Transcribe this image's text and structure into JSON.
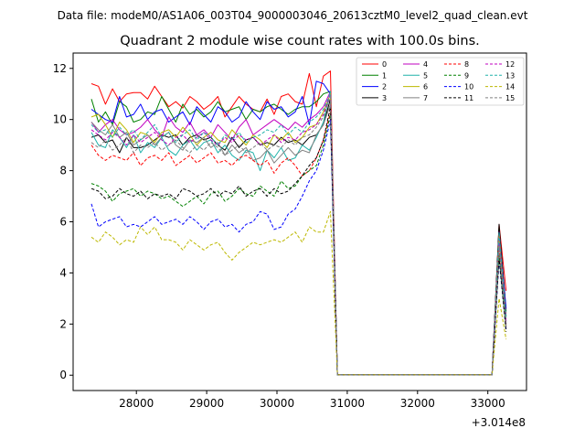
{
  "header": {
    "data_file": "Data file: modeM0/AS1A06_003T04_9000003046_20613cztM0_level2_quad_clean.evt"
  },
  "chart_data": {
    "type": "line",
    "title": "Quadrant 2 module wise count rates with 100.0s bins.",
    "xlabel": "",
    "ylabel": "",
    "x_offset_label": "+3.014e8",
    "xlim": [
      27100,
      33550
    ],
    "ylim": [
      -0.6,
      12.6
    ],
    "x_ticks": [
      28000,
      29000,
      30000,
      31000,
      32000,
      33000
    ],
    "x_tick_labels": [
      "28000",
      "29000",
      "30000",
      "31000",
      "32000",
      "33000"
    ],
    "y_ticks": [
      0,
      2,
      4,
      6,
      8,
      10,
      12
    ],
    "y_tick_labels": [
      "0",
      "2",
      "4",
      "6",
      "8",
      "10",
      "12"
    ],
    "legend_position": "top-right",
    "x": [
      27360,
      27460,
      27560,
      27660,
      27760,
      27860,
      27960,
      28060,
      28160,
      28260,
      28360,
      28460,
      28560,
      28660,
      28760,
      28860,
      28960,
      29060,
      29160,
      29260,
      29360,
      29460,
      29560,
      29660,
      29760,
      29860,
      29960,
      30060,
      30160,
      30260,
      30360,
      30460,
      30560,
      30660,
      30760,
      30860,
      30960,
      31060,
      31160,
      31260,
      31360,
      31460,
      31560,
      31660,
      31760,
      31860,
      31960,
      32060,
      32160,
      32260,
      32360,
      32460,
      32560,
      32660,
      32760,
      32860,
      32960,
      33060,
      33160,
      33260
    ],
    "series": [
      {
        "name": "0",
        "color": "#ff0000",
        "dash": "solid",
        "values": [
          11.4,
          11.3,
          10.6,
          11.2,
          10.7,
          11.0,
          11.05,
          11.05,
          10.8,
          11.3,
          10.9,
          10.5,
          10.7,
          10.45,
          10.9,
          10.7,
          10.4,
          10.6,
          10.9,
          10.1,
          10.5,
          10.9,
          10.6,
          10.4,
          10.3,
          10.8,
          10.2,
          10.9,
          11.0,
          10.7,
          10.6,
          11.8,
          10.5,
          11.7,
          11.9,
          0.02,
          0.02,
          0.02,
          0.02,
          0.02,
          0.02,
          0.02,
          0.02,
          0.02,
          0.02,
          0.02,
          0.02,
          0.02,
          0.02,
          0.02,
          0.02,
          0.02,
          0.02,
          0.02,
          0.02,
          0.02,
          0.02,
          0.02,
          5.9,
          3.3
        ]
      },
      {
        "name": "1",
        "color": "#008000",
        "dash": "solid",
        "values": [
          10.8,
          9.9,
          10.3,
          9.8,
          10.7,
          10.5,
          9.9,
          10.0,
          10.3,
          10.2,
          10.9,
          10.4,
          9.9,
          10.6,
          10.2,
          10.4,
          10.1,
          10.3,
          10.7,
          10.3,
          10.4,
          10.5,
          10.0,
          10.4,
          10.3,
          10.5,
          10.6,
          10.4,
          10.2,
          10.4,
          10.5,
          10.5,
          10.7,
          11.0,
          11.1,
          0.02,
          0.02,
          0.02,
          0.02,
          0.02,
          0.02,
          0.02,
          0.02,
          0.02,
          0.02,
          0.02,
          0.02,
          0.02,
          0.02,
          0.02,
          0.02,
          0.02,
          0.02,
          0.02,
          0.02,
          0.02,
          0.02,
          0.02,
          5.8,
          2.5
        ]
      },
      {
        "name": "2",
        "color": "#0000ff",
        "dash": "solid",
        "values": [
          10.4,
          10.2,
          10.0,
          9.9,
          10.9,
          10.1,
          10.2,
          10.6,
          10.0,
          10.3,
          10.4,
          9.9,
          10.1,
          10.3,
          9.8,
          10.5,
          10.2,
          9.9,
          10.5,
          10.3,
          9.9,
          10.1,
          10.7,
          10.3,
          10.0,
          10.7,
          10.4,
          10.5,
          10.1,
          10.3,
          10.9,
          9.8,
          11.5,
          11.4,
          11.0,
          0.02,
          0.02,
          0.02,
          0.02,
          0.02,
          0.02,
          0.02,
          0.02,
          0.02,
          0.02,
          0.02,
          0.02,
          0.02,
          0.02,
          0.02,
          0.02,
          0.02,
          0.02,
          0.02,
          0.02,
          0.02,
          0.02,
          0.02,
          5.7,
          2.6
        ]
      },
      {
        "name": "3",
        "color": "#000000",
        "dash": "solid",
        "values": [
          9.3,
          9.4,
          9.1,
          9.2,
          8.7,
          9.3,
          8.9,
          8.9,
          9.0,
          9.2,
          9.4,
          9.3,
          9.4,
          9.0,
          9.3,
          9.4,
          9.2,
          9.3,
          9.0,
          8.8,
          9.3,
          8.9,
          9.2,
          9.3,
          9.0,
          9.1,
          9.0,
          9.3,
          9.1,
          9.2,
          9.0,
          9.3,
          9.4,
          9.8,
          10.8,
          0.02,
          0.02,
          0.02,
          0.02,
          0.02,
          0.02,
          0.02,
          0.02,
          0.02,
          0.02,
          0.02,
          0.02,
          0.02,
          0.02,
          0.02,
          0.02,
          0.02,
          0.02,
          0.02,
          0.02,
          0.02,
          0.02,
          0.02,
          5.9,
          2.3
        ]
      },
      {
        "name": "4",
        "color": "#c000c0",
        "dash": "solid",
        "values": [
          9.9,
          9.5,
          9.8,
          10.0,
          9.6,
          9.4,
          9.5,
          9.7,
          10.0,
          9.6,
          9.3,
          10.1,
          9.7,
          9.5,
          9.9,
          9.4,
          9.6,
          9.3,
          9.8,
          9.5,
          9.2,
          9.7,
          10.0,
          9.4,
          9.6,
          9.8,
          10.0,
          9.8,
          9.6,
          9.9,
          9.7,
          10.0,
          10.2,
          10.5,
          11.1,
          0.02,
          0.02,
          0.02,
          0.02,
          0.02,
          0.02,
          0.02,
          0.02,
          0.02,
          0.02,
          0.02,
          0.02,
          0.02,
          0.02,
          0.02,
          0.02,
          0.02,
          0.02,
          0.02,
          0.02,
          0.02,
          0.02,
          0.02,
          5.6,
          2.2
        ]
      },
      {
        "name": "5",
        "color": "#20b2aa",
        "dash": "solid",
        "values": [
          9.5,
          9.0,
          8.9,
          9.6,
          9.3,
          8.9,
          9.4,
          8.7,
          9.1,
          8.9,
          9.3,
          8.8,
          8.6,
          9.0,
          9.2,
          8.8,
          9.1,
          9.2,
          8.7,
          9.0,
          8.6,
          8.4,
          8.8,
          8.7,
          8.0,
          8.8,
          8.5,
          8.9,
          8.4,
          8.5,
          9.0,
          8.8,
          9.3,
          9.9,
          11.1,
          0.02,
          0.02,
          0.02,
          0.02,
          0.02,
          0.02,
          0.02,
          0.02,
          0.02,
          0.02,
          0.02,
          0.02,
          0.02,
          0.02,
          0.02,
          0.02,
          0.02,
          0.02,
          0.02,
          0.02,
          0.02,
          0.02,
          0.02,
          5.3,
          2.1
        ]
      },
      {
        "name": "6",
        "color": "#bdb800",
        "dash": "solid",
        "values": [
          10.1,
          10.2,
          9.8,
          9.3,
          9.9,
          9.6,
          9.1,
          9.5,
          9.4,
          9.1,
          9.5,
          9.6,
          9.3,
          9.7,
          9.4,
          9.0,
          9.3,
          9.5,
          9.2,
          9.1,
          9.6,
          9.3,
          9.0,
          9.4,
          9.2,
          8.9,
          9.4,
          9.2,
          9.5,
          9.1,
          9.3,
          9.7,
          9.8,
          10.3,
          11.0,
          0.02,
          0.02,
          0.02,
          0.02,
          0.02,
          0.02,
          0.02,
          0.02,
          0.02,
          0.02,
          0.02,
          0.02,
          0.02,
          0.02,
          0.02,
          0.02,
          0.02,
          0.02,
          0.02,
          0.02,
          0.02,
          0.02,
          0.02,
          5.5,
          2.0
        ]
      },
      {
        "name": "7",
        "color": "#808080",
        "dash": "solid",
        "values": [
          9.9,
          9.6,
          9.4,
          9.8,
          9.3,
          9.5,
          9.0,
          9.2,
          9.4,
          9.0,
          9.3,
          9.5,
          9.0,
          8.8,
          9.2,
          9.1,
          9.3,
          8.9,
          9.1,
          8.6,
          9.0,
          8.7,
          8.9,
          8.4,
          8.5,
          8.8,
          8.3,
          8.6,
          8.9,
          8.6,
          8.8,
          8.7,
          9.4,
          9.8,
          10.6,
          0.02,
          0.02,
          0.02,
          0.02,
          0.02,
          0.02,
          0.02,
          0.02,
          0.02,
          0.02,
          0.02,
          0.02,
          0.02,
          0.02,
          0.02,
          0.02,
          0.02,
          0.02,
          0.02,
          0.02,
          0.02,
          0.02,
          0.02,
          5.2,
          2.0
        ]
      },
      {
        "name": "8",
        "color": "#ff0000",
        "dash": "dashed",
        "values": [
          9.0,
          8.6,
          8.4,
          8.6,
          8.5,
          8.4,
          8.7,
          8.2,
          8.5,
          8.6,
          8.4,
          8.7,
          8.2,
          8.4,
          8.6,
          8.3,
          8.5,
          8.7,
          8.3,
          8.4,
          8.2,
          8.5,
          8.6,
          8.4,
          8.2,
          8.4,
          7.9,
          8.3,
          8.5,
          8.2,
          7.8,
          8.0,
          8.5,
          9.2,
          10.3,
          0.02,
          0.02,
          0.02,
          0.02,
          0.02,
          0.02,
          0.02,
          0.02,
          0.02,
          0.02,
          0.02,
          0.02,
          0.02,
          0.02,
          0.02,
          0.02,
          0.02,
          0.02,
          0.02,
          0.02,
          0.02,
          0.02,
          0.02,
          4.9,
          1.9
        ]
      },
      {
        "name": "9",
        "color": "#008000",
        "dash": "dashed",
        "values": [
          7.5,
          7.4,
          7.2,
          6.8,
          7.1,
          7.2,
          7.3,
          7.0,
          7.2,
          7.1,
          6.9,
          7.0,
          6.8,
          6.6,
          6.8,
          7.0,
          6.7,
          7.1,
          7.2,
          6.8,
          7.0,
          7.3,
          7.1,
          7.0,
          7.4,
          7.2,
          7.0,
          7.6,
          7.3,
          7.4,
          7.8,
          8.0,
          8.2,
          9.0,
          10.2,
          0.02,
          0.02,
          0.02,
          0.02,
          0.02,
          0.02,
          0.02,
          0.02,
          0.02,
          0.02,
          0.02,
          0.02,
          0.02,
          0.02,
          0.02,
          0.02,
          0.02,
          0.02,
          0.02,
          0.02,
          0.02,
          0.02,
          0.02,
          4.7,
          1.8
        ]
      },
      {
        "name": "10",
        "color": "#0000ff",
        "dash": "dashed",
        "values": [
          6.7,
          5.8,
          6.0,
          6.1,
          6.2,
          5.8,
          5.9,
          5.8,
          6.0,
          6.2,
          5.9,
          6.0,
          6.1,
          5.9,
          6.2,
          6.0,
          5.7,
          6.0,
          6.1,
          5.8,
          5.9,
          5.6,
          5.9,
          6.0,
          6.4,
          6.3,
          5.7,
          5.8,
          6.3,
          6.5,
          7.0,
          7.6,
          8.0,
          8.8,
          10.0,
          0.02,
          0.02,
          0.02,
          0.02,
          0.02,
          0.02,
          0.02,
          0.02,
          0.02,
          0.02,
          0.02,
          0.02,
          0.02,
          0.02,
          0.02,
          0.02,
          0.02,
          0.02,
          0.02,
          0.02,
          0.02,
          0.02,
          0.02,
          4.5,
          1.8
        ]
      },
      {
        "name": "11",
        "color": "#000000",
        "dash": "dashed",
        "values": [
          7.3,
          7.2,
          6.9,
          7.0,
          7.3,
          7.1,
          7.0,
          7.2,
          6.9,
          7.1,
          7.0,
          7.1,
          6.9,
          7.3,
          7.2,
          7.0,
          7.1,
          7.3,
          7.0,
          7.2,
          7.1,
          7.4,
          7.0,
          7.2,
          7.3,
          7.0,
          7.3,
          7.1,
          7.2,
          7.5,
          7.8,
          8.2,
          8.5,
          9.2,
          10.5,
          0.02,
          0.02,
          0.02,
          0.02,
          0.02,
          0.02,
          0.02,
          0.02,
          0.02,
          0.02,
          0.02,
          0.02,
          0.02,
          0.02,
          0.02,
          0.02,
          0.02,
          0.02,
          0.02,
          0.02,
          0.02,
          0.02,
          0.02,
          4.6,
          1.7
        ]
      },
      {
        "name": "12",
        "color": "#c000c0",
        "dash": "dashed",
        "values": [
          9.6,
          9.4,
          9.2,
          9.5,
          9.3,
          9.0,
          9.4,
          9.1,
          9.3,
          9.5,
          9.2,
          9.0,
          9.3,
          9.4,
          9.1,
          9.3,
          9.5,
          9.2,
          9.0,
          9.3,
          9.1,
          9.4,
          9.2,
          9.3,
          9.0,
          9.2,
          9.4,
          9.1,
          9.3,
          9.2,
          9.5,
          9.6,
          9.8,
          10.2,
          11.0,
          0.02,
          0.02,
          0.02,
          0.02,
          0.02,
          0.02,
          0.02,
          0.02,
          0.02,
          0.02,
          0.02,
          0.02,
          0.02,
          0.02,
          0.02,
          0.02,
          0.02,
          0.02,
          0.02,
          0.02,
          0.02,
          0.02,
          0.02,
          5.4,
          2.1
        ]
      },
      {
        "name": "13",
        "color": "#20b2aa",
        "dash": "dashed",
        "values": [
          9.8,
          9.5,
          9.6,
          9.3,
          9.7,
          9.4,
          9.6,
          9.2,
          9.5,
          9.8,
          9.3,
          9.5,
          9.1,
          9.4,
          9.6,
          9.2,
          9.5,
          9.3,
          9.0,
          9.4,
          9.2,
          9.5,
          9.1,
          9.3,
          9.4,
          9.6,
          9.5,
          9.8,
          9.4,
          9.7,
          9.5,
          9.9,
          10.1,
          10.4,
          11.0,
          0.02,
          0.02,
          0.02,
          0.02,
          0.02,
          0.02,
          0.02,
          0.02,
          0.02,
          0.02,
          0.02,
          0.02,
          0.02,
          0.02,
          0.02,
          0.02,
          0.02,
          0.02,
          0.02,
          0.02,
          0.02,
          0.02,
          0.02,
          5.6,
          2.2
        ]
      },
      {
        "name": "14",
        "color": "#bdb800",
        "dash": "dashed",
        "values": [
          5.4,
          5.2,
          5.6,
          5.4,
          5.1,
          5.3,
          5.2,
          5.8,
          5.5,
          5.8,
          5.3,
          5.3,
          5.2,
          4.9,
          5.3,
          5.1,
          4.9,
          5.1,
          5.2,
          4.8,
          4.5,
          4.8,
          5.0,
          5.2,
          5.1,
          5.2,
          5.3,
          5.2,
          5.4,
          5.6,
          5.2,
          5.8,
          5.6,
          5.6,
          6.4,
          0.02,
          0.02,
          0.02,
          0.02,
          0.02,
          0.02,
          0.02,
          0.02,
          0.02,
          0.02,
          0.02,
          0.02,
          0.02,
          0.02,
          0.02,
          0.02,
          0.02,
          0.02,
          0.02,
          0.02,
          0.02,
          0.02,
          0.02,
          3.0,
          1.4
        ]
      },
      {
        "name": "15",
        "color": "#808080",
        "dash": "dashed",
        "values": [
          9.1,
          8.9,
          9.2,
          8.8,
          9.0,
          9.3,
          8.7,
          9.0,
          8.9,
          9.1,
          8.8,
          9.0,
          9.2,
          8.9,
          8.7,
          9.0,
          8.8,
          9.1,
          8.9,
          8.6,
          8.8,
          9.0,
          8.7,
          8.9,
          9.1,
          8.8,
          9.0,
          8.9,
          9.2,
          9.0,
          9.3,
          9.4,
          9.7,
          10.1,
          10.9,
          0.02,
          0.02,
          0.02,
          0.02,
          0.02,
          0.02,
          0.02,
          0.02,
          0.02,
          0.02,
          0.02,
          0.02,
          0.02,
          0.02,
          0.02,
          0.02,
          0.02,
          0.02,
          0.02,
          0.02,
          0.02,
          0.02,
          0.02,
          5.0,
          1.9
        ]
      }
    ]
  }
}
